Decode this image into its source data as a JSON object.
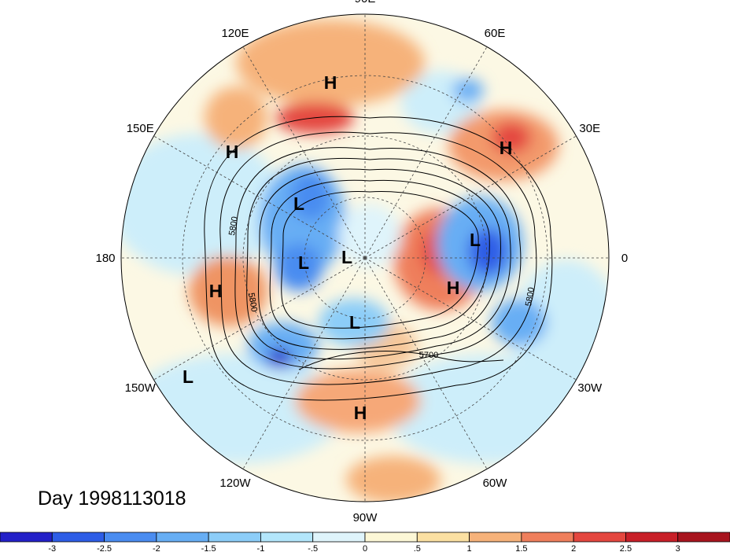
{
  "title": "Day 1998113018",
  "longitude_labels": [
    {
      "text": "90E",
      "angle": 0
    },
    {
      "text": "60E",
      "angle": 30
    },
    {
      "text": "30E",
      "angle": 60
    },
    {
      "text": "0",
      "angle": 90
    },
    {
      "text": "30W",
      "angle": 120
    },
    {
      "text": "60W",
      "angle": 150
    },
    {
      "text": "90W",
      "angle": 180
    },
    {
      "text": "120W",
      "angle": 210
    },
    {
      "text": "150W",
      "angle": 240
    },
    {
      "text": "180",
      "angle": 270
    },
    {
      "text": "150E",
      "angle": 300
    },
    {
      "text": "120E",
      "angle": 330
    }
  ],
  "pressure_centers": [
    {
      "type": "H",
      "lon": "near 100E mid-lat"
    },
    {
      "type": "H",
      "lon": "30E"
    },
    {
      "type": "H",
      "lon": "150E"
    },
    {
      "type": "H",
      "lon": "180"
    },
    {
      "type": "H",
      "lon": "0 high-lat"
    },
    {
      "type": "H",
      "lon": "90W"
    },
    {
      "type": "L",
      "lon": "135E"
    },
    {
      "type": "L",
      "lon": "150E high"
    },
    {
      "type": "L",
      "lon": "pole"
    },
    {
      "type": "L",
      "lon": "0"
    },
    {
      "type": "L",
      "lon": "100W"
    },
    {
      "type": "L",
      "lon": "150W"
    }
  ],
  "contour_labels": [
    "5800",
    "5800",
    "5800",
    "5700"
  ],
  "colorbar": {
    "ticks": [
      "-3",
      "-2.5",
      "-2",
      "-1.5",
      "-1",
      "-.5",
      "0",
      ".5",
      "1",
      "1.5",
      "2",
      "2.5",
      "3"
    ],
    "colors": [
      "#2320c8",
      "#2d5de6",
      "#4a8cf0",
      "#67aef4",
      "#8ccdf8",
      "#b3e6fb",
      "#dff4fb",
      "#fcf7d6",
      "#fbe0a2",
      "#f6b27a",
      "#ef7f5c",
      "#e4473f",
      "#c81f28",
      "#a8141e"
    ]
  }
}
